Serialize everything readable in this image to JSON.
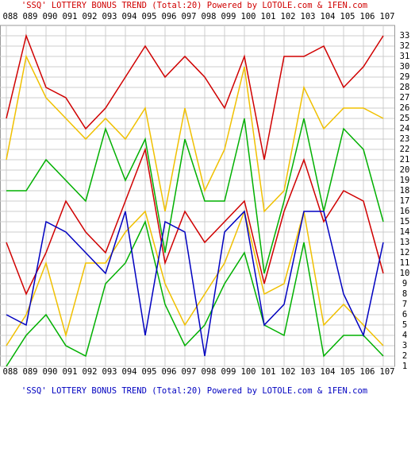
{
  "chart_data": {
    "type": "line",
    "title": "'SSQ' LOTTERY BONUS TREND (Total:20)  Powered by LOTOLE.com & 1FEN.com",
    "footer": "'SSQ' LOTTERY BONUS TREND (Total:20)  Powered by LOTOLE.com & 1FEN.com",
    "title_color": "#d00000",
    "footer_color": "#0000c0",
    "categories": [
      "088",
      "089",
      "090",
      "091",
      "092",
      "093",
      "094",
      "095",
      "096",
      "097",
      "098",
      "099",
      "100",
      "101",
      "102",
      "103",
      "104",
      "105",
      "106",
      "107"
    ],
    "series": [
      {
        "color": "#d00000",
        "values": [
          25,
          33,
          28,
          27,
          24,
          26,
          29,
          32,
          29,
          31,
          29,
          26,
          31,
          21,
          31,
          31,
          32,
          28,
          30,
          33
        ]
      },
      {
        "color": "#f0c000",
        "values": [
          21,
          31,
          27,
          25,
          23,
          25,
          23,
          26,
          16,
          26,
          18,
          22,
          30,
          16,
          18,
          28,
          24,
          26,
          26,
          25
        ]
      },
      {
        "color": "#00b000",
        "values": [
          18,
          18,
          21,
          19,
          17,
          24,
          19,
          23,
          12,
          23,
          17,
          17,
          25,
          10,
          17,
          25,
          16,
          24,
          22,
          15
        ]
      },
      {
        "color": "#d00000",
        "values": [
          13,
          8,
          12,
          17,
          14,
          12,
          17,
          22,
          11,
          16,
          13,
          15,
          17,
          9,
          16,
          21,
          15,
          18,
          17,
          10
        ]
      },
      {
        "color": "#f0c000",
        "values": [
          3,
          6,
          11,
          4,
          11,
          11,
          14,
          16,
          9,
          5,
          8,
          11,
          16,
          8,
          9,
          16,
          5,
          7,
          5,
          3
        ]
      },
      {
        "color": "#00b000",
        "values": [
          1,
          4,
          6,
          3,
          2,
          9,
          11,
          15,
          7,
          3,
          5,
          9,
          12,
          5,
          4,
          13,
          2,
          4,
          4,
          2
        ]
      },
      {
        "color": "#0000c0",
        "values": [
          6,
          5,
          15,
          14,
          12,
          10,
          16,
          4,
          15,
          14,
          2,
          14,
          16,
          5,
          7,
          16,
          16,
          8,
          4,
          13
        ]
      }
    ],
    "ylim": [
      1,
      34
    ],
    "yticks": [
      1,
      2,
      3,
      4,
      5,
      6,
      7,
      8,
      9,
      10,
      11,
      12,
      13,
      14,
      15,
      16,
      17,
      18,
      19,
      20,
      21,
      22,
      23,
      24,
      25,
      26,
      27,
      28,
      29,
      30,
      31,
      32,
      33
    ],
    "grid": true
  }
}
